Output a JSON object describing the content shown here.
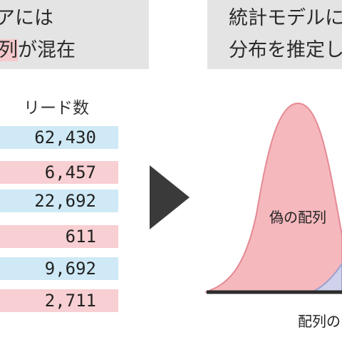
{
  "left_panel": {
    "line1": "アには",
    "line2_highlight": "列",
    "line2_rest": "が混在"
  },
  "right_panel": {
    "line1": "統計モデルに",
    "line2": "分布を推定し"
  },
  "table": {
    "header": "リード数",
    "rows": [
      {
        "value": "62,430",
        "type": "true"
      },
      {
        "value": "6,457",
        "type": "false"
      },
      {
        "value": "22,692",
        "type": "true"
      },
      {
        "value": "611",
        "type": "false"
      },
      {
        "value": "9,692",
        "type": "true"
      },
      {
        "value": "2,711",
        "type": "false"
      }
    ]
  },
  "colors": {
    "banner": "#e4e4e4",
    "true_row": "#cfe9f6",
    "false_row": "#f8cfd2",
    "false_curve": "#f5b8bd",
    "arrow": "#3a3a3a"
  },
  "figure": {
    "curve_label": "偽の配列",
    "axis_label": "配列の"
  },
  "icons": {
    "arrow": "right-triangle-arrow-icon"
  }
}
